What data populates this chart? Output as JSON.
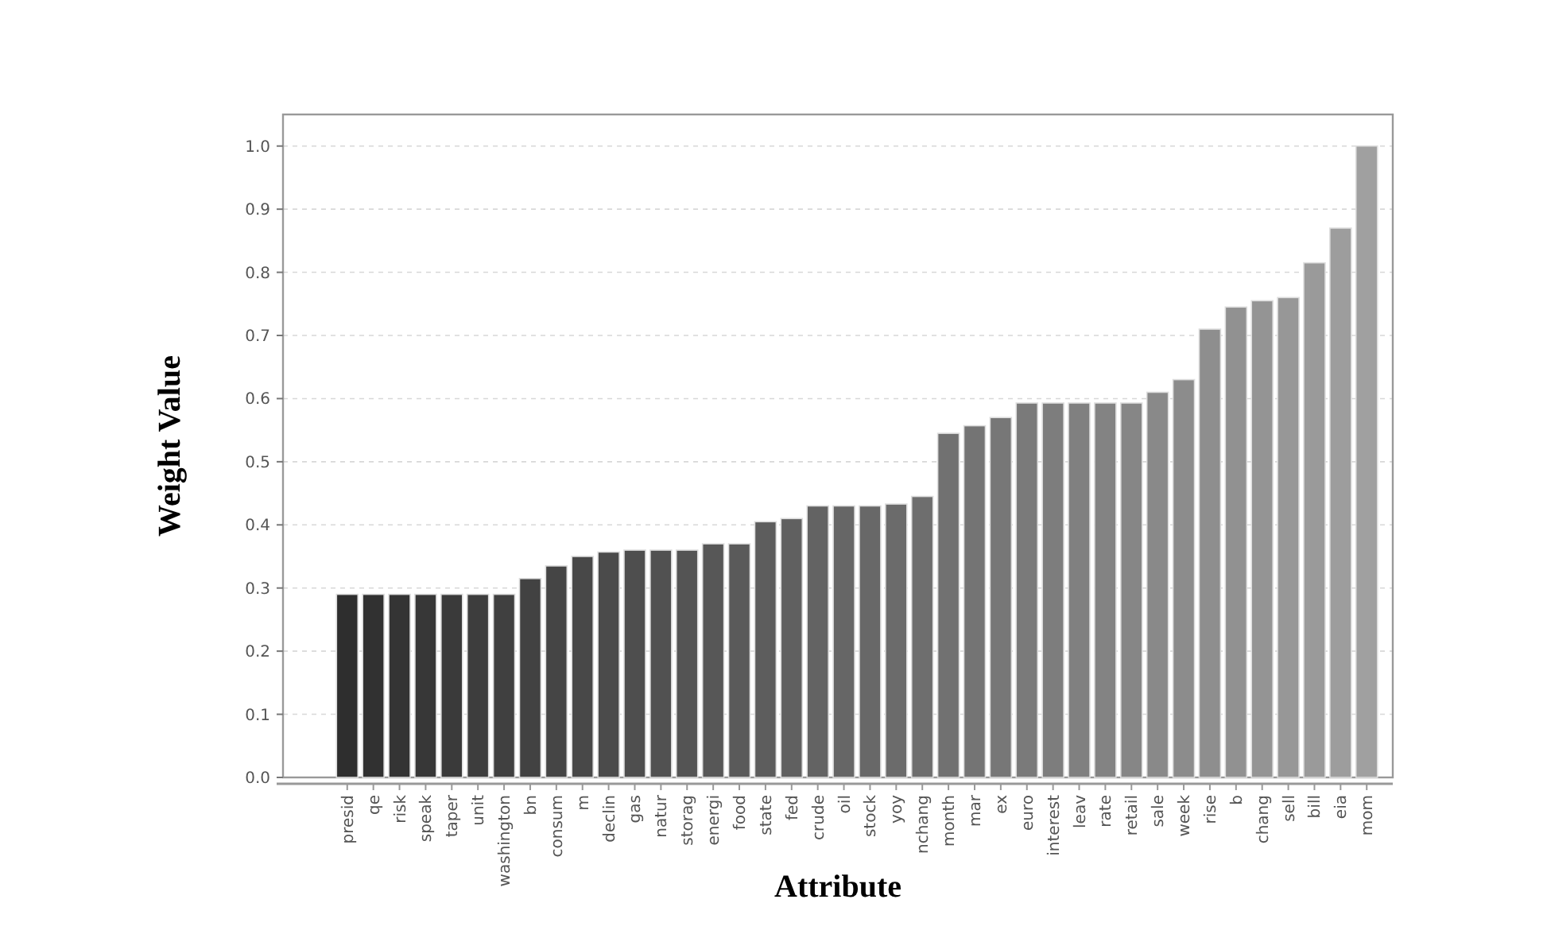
{
  "chart_data": {
    "type": "bar",
    "xlabel": "Attribute",
    "ylabel": "Weight Value",
    "categories": [
      "presid",
      "qe",
      "risk",
      "speak",
      "taper",
      "unit",
      "washington",
      "bn",
      "consum",
      "m",
      "declin",
      "gas",
      "natur",
      "storag",
      "energi",
      "food",
      "state",
      "fed",
      "crude",
      "oil",
      "stock",
      "yoy",
      "nchang",
      "month",
      "mar",
      "ex",
      "euro",
      "interest",
      "leav",
      "rate",
      "retail",
      "sale",
      "week",
      "rise",
      "b",
      "chang",
      "sell",
      "bill",
      "eia",
      "mom"
    ],
    "values": [
      0.29,
      0.29,
      0.29,
      0.29,
      0.29,
      0.29,
      0.29,
      0.315,
      0.335,
      0.35,
      0.357,
      0.36,
      0.36,
      0.36,
      0.37,
      0.37,
      0.405,
      0.41,
      0.43,
      0.43,
      0.43,
      0.433,
      0.445,
      0.545,
      0.557,
      0.57,
      0.593,
      0.593,
      0.593,
      0.593,
      0.593,
      0.61,
      0.63,
      0.71,
      0.745,
      0.755,
      0.76,
      0.815,
      0.87,
      1.0
    ],
    "colors": [
      "#2e2e2e",
      "#313131",
      "#343434",
      "#373737",
      "#3a3a3a",
      "#3d3d3d",
      "#404040",
      "#424242",
      "#454545",
      "#484848",
      "#4b4b4b",
      "#4e4e4e",
      "#515151",
      "#545454",
      "#575757",
      "#5a5a5a",
      "#5d5d5d",
      "#606060",
      "#636363",
      "#666666",
      "#686868",
      "#6b6b6b",
      "#6e6e6e",
      "#717171",
      "#747474",
      "#777777",
      "#7a7a7a",
      "#7d7d7d",
      "#808080",
      "#838383",
      "#868686",
      "#898989",
      "#8c8c8c",
      "#8e8e8e",
      "#919191",
      "#949494",
      "#979797",
      "#9a9a9a",
      "#9d9d9d",
      "#a0a0a0"
    ],
    "ylim": [
      0,
      1.05
    ],
    "yticks": [
      {
        "value": 0,
        "label": "0.0"
      },
      {
        "value": 0.1,
        "label": "0.1"
      },
      {
        "value": 0.2,
        "label": "0.2"
      },
      {
        "value": 0.3,
        "label": "0.3"
      },
      {
        "value": 0.4,
        "label": "0.4"
      },
      {
        "value": 0.5,
        "label": "0.5"
      },
      {
        "value": 0.6,
        "label": "0.6"
      },
      {
        "value": 0.7,
        "label": "0.7"
      },
      {
        "value": 0.8,
        "label": "0.8"
      },
      {
        "value": 0.9,
        "label": "0.9"
      },
      {
        "value": 1,
        "label": "1.0"
      }
    ],
    "grid": "y"
  }
}
